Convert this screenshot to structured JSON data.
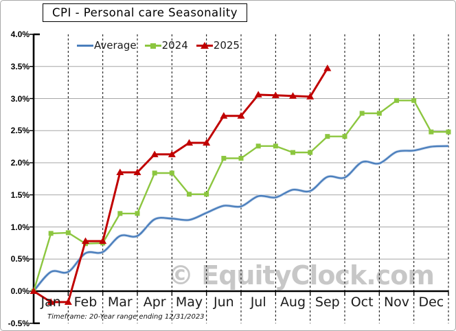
{
  "title": "CPI - Personal care Seasonality",
  "footnote": "Timeframe: 20-Year range ending 12/31/2023",
  "watermark": "© EquityClock.com",
  "colors": {
    "average_line": "#4a7ebc",
    "average_halo": "#c3d4ea",
    "series_2024": "#8cc63f",
    "series_2025": "#c00000",
    "gridline": "#a6a6a6",
    "axis": "#000000",
    "watermark": "#c7c7c7"
  },
  "chart_data": {
    "type": "line",
    "title": "CPI - Personal care Seasonality",
    "xlabel": "",
    "ylabel": "",
    "x_axis": {
      "categories": [
        "Jan",
        "Feb",
        "Mar",
        "Apr",
        "May",
        "Jun",
        "Jul",
        "Aug",
        "Sep",
        "Oct",
        "Nov",
        "Dec"
      ],
      "points_per_month": 2,
      "note": "all series start at 0.0% on Jan 1; data points fall at mid-month and month-end"
    },
    "y_axis": {
      "unit": "%",
      "min": -0.5,
      "max": 4.0,
      "tick_labels": [
        "4.0%",
        "3.5%",
        "3.0%",
        "2.5%",
        "2.0%",
        "1.5%",
        "1.0%",
        "0.5%",
        "0.0%",
        "-0.5%"
      ],
      "tick_values": [
        4.0,
        3.5,
        3.0,
        2.5,
        2.0,
        1.5,
        1.0,
        0.5,
        0.0,
        -0.5
      ],
      "gridline_values": [
        3.5,
        3.0,
        2.5,
        2.0,
        1.5,
        1.0,
        0.5
      ]
    },
    "legend_position": "top-center",
    "series": [
      {
        "name": "Average",
        "marker": "none",
        "smooth": true,
        "values": [
          0.0,
          0.3,
          0.3,
          0.59,
          0.61,
          0.86,
          0.86,
          1.12,
          1.13,
          1.11,
          1.22,
          1.33,
          1.32,
          1.48,
          1.46,
          1.58,
          1.56,
          1.78,
          1.77,
          2.01,
          1.99,
          2.17,
          2.19,
          2.25,
          2.26
        ]
      },
      {
        "name": "2024",
        "marker": "square",
        "smooth": false,
        "values": [
          0.0,
          0.9,
          0.91,
          0.74,
          0.75,
          1.21,
          1.21,
          1.84,
          1.84,
          1.51,
          1.51,
          2.07,
          2.07,
          2.26,
          2.26,
          2.16,
          2.16,
          2.41,
          2.41,
          2.77,
          2.77,
          2.97,
          2.97,
          2.48,
          2.48
        ]
      },
      {
        "name": "2025",
        "marker": "triangle",
        "smooth": false,
        "values": [
          0.0,
          -0.17,
          -0.17,
          0.78,
          0.78,
          1.85,
          1.85,
          2.13,
          2.13,
          2.31,
          2.31,
          2.73,
          2.73,
          3.06,
          3.05,
          3.04,
          3.03,
          3.47
        ]
      }
    ]
  }
}
